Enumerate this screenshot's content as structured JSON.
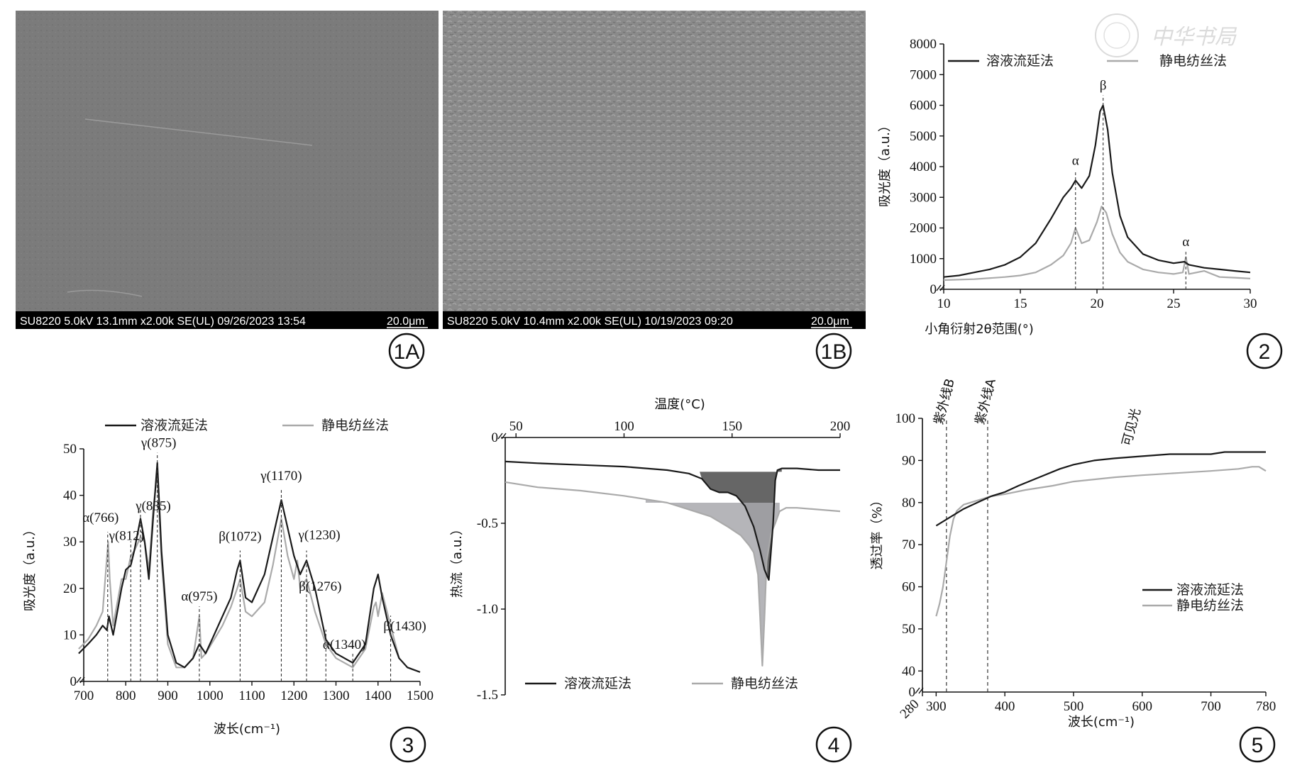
{
  "colors": {
    "dark": "#1a1a1a",
    "light": "#aaaaaa",
    "fill_dark": "#555555",
    "fill_light": "#a8a8ad",
    "sem_bg": "#8c8c8c"
  },
  "panels": {
    "p1a": {
      "label": "1A",
      "info": "SU8220 5.0kV 13.1mm x2.00k SE(UL) 09/26/2023 13:54",
      "scale": "20.0μm"
    },
    "p1b": {
      "label": "1B",
      "info": "SU8220 5.0kV 10.4mm x2.00k SE(UL) 10/19/2023 09:20",
      "scale": "20.0μm"
    },
    "p2": {
      "label": "2"
    },
    "p3": {
      "label": "3"
    },
    "p4": {
      "label": "4"
    },
    "p5": {
      "label": "5"
    }
  },
  "watermark": "中华书局",
  "chart_data": [
    {
      "id": "p2",
      "type": "line",
      "xlabel": "小角衍射2θ范围(°)",
      "ylabel": "吸光度（a.u.）",
      "xlim": [
        10,
        30
      ],
      "ylim": [
        0,
        8000
      ],
      "xticks": [
        10,
        15,
        20,
        25,
        30
      ],
      "yticks": [
        0,
        1000,
        2000,
        3000,
        4000,
        5000,
        6000,
        7000,
        8000
      ],
      "legend": [
        "溶液流延法",
        "静电纺丝法"
      ],
      "legend_position": "top",
      "series": [
        {
          "name": "溶液流延法",
          "x": [
            10,
            11,
            12,
            13,
            14,
            15,
            16,
            17,
            17.8,
            18.3,
            18.6,
            19,
            19.5,
            19.9,
            20.2,
            20.4,
            20.7,
            21,
            21.5,
            22,
            23,
            24,
            25,
            25.7,
            26,
            27,
            28,
            29,
            30
          ],
          "values": [
            400,
            450,
            550,
            650,
            800,
            1050,
            1500,
            2300,
            3000,
            3300,
            3550,
            3300,
            3700,
            4700,
            5800,
            6000,
            5200,
            3800,
            2400,
            1700,
            1150,
            950,
            850,
            900,
            800,
            700,
            650,
            600,
            550
          ]
        },
        {
          "name": "静电纺丝法",
          "x": [
            10,
            12,
            14,
            15,
            16,
            17,
            17.8,
            18.3,
            18.6,
            19,
            19.5,
            20,
            20.3,
            20.6,
            21,
            21.5,
            22,
            23,
            24,
            25,
            25.6,
            25.8,
            26,
            27,
            28,
            29,
            30
          ],
          "values": [
            300,
            330,
            400,
            450,
            550,
            800,
            1100,
            1500,
            2000,
            1500,
            1600,
            2200,
            2700,
            2500,
            1800,
            1200,
            900,
            650,
            550,
            500,
            550,
            1050,
            500,
            600,
            400,
            380,
            350
          ]
        }
      ],
      "annotations": [
        {
          "text": "α",
          "x": 18.6
        },
        {
          "text": "β",
          "x": 20.4
        },
        {
          "text": "α",
          "x": 25.8
        }
      ]
    },
    {
      "id": "p3",
      "type": "line",
      "xlabel": "波长(cm⁻¹)",
      "ylabel": "吸光度（a.u.）",
      "xlim": [
        700,
        1500
      ],
      "ylim": [
        0,
        50
      ],
      "xticks": [
        700,
        800,
        900,
        1000,
        1100,
        1200,
        1300,
        1400,
        1500
      ],
      "yticks": [
        0,
        10,
        20,
        30,
        40,
        50
      ],
      "legend": [
        "溶液流延法",
        "静电纺丝法"
      ],
      "legend_position": "top",
      "series": [
        {
          "name": "溶液流延法",
          "x": [
            688,
            710,
            730,
            745,
            755,
            760,
            770,
            790,
            800,
            812,
            820,
            835,
            845,
            855,
            865,
            875,
            885,
            900,
            920,
            940,
            960,
            975,
            990,
            1010,
            1030,
            1050,
            1065,
            1072,
            1085,
            1100,
            1130,
            1150,
            1170,
            1185,
            1200,
            1215,
            1230,
            1250,
            1276,
            1300,
            1340,
            1370,
            1390,
            1400,
            1410,
            1430,
            1450,
            1470,
            1500
          ],
          "values": [
            6,
            8,
            10,
            12,
            11,
            14,
            10,
            20,
            24,
            25,
            28,
            35,
            30,
            22,
            35,
            47,
            28,
            10,
            4,
            3,
            5,
            8,
            6,
            10,
            14,
            18,
            24,
            26,
            18,
            17,
            23,
            31,
            39,
            33,
            27,
            23,
            26,
            20,
            9,
            6,
            4,
            8,
            20,
            23,
            18,
            10,
            5,
            3,
            2
          ]
        },
        {
          "name": "静电纺丝法",
          "x": [
            688,
            710,
            730,
            745,
            758,
            762,
            770,
            790,
            800,
            812,
            820,
            835,
            845,
            855,
            865,
            875,
            885,
            900,
            920,
            940,
            960,
            975,
            980,
            990,
            1010,
            1030,
            1050,
            1065,
            1072,
            1085,
            1100,
            1130,
            1150,
            1170,
            1185,
            1200,
            1208,
            1215,
            1230,
            1250,
            1276,
            1300,
            1340,
            1370,
            1390,
            1395,
            1400,
            1410,
            1430,
            1450,
            1470,
            1500
          ],
          "values": [
            7,
            9,
            12,
            15,
            30,
            22,
            12,
            22,
            22,
            27,
            28,
            31,
            30,
            24,
            37,
            45,
            26,
            8,
            3,
            3,
            5,
            14,
            5,
            6,
            9,
            12,
            16,
            20,
            22,
            15,
            14,
            17,
            25,
            35,
            27,
            22,
            26,
            20,
            22,
            15,
            8,
            5,
            3,
            7,
            16,
            17,
            14,
            19,
            12,
            5,
            3,
            2
          ]
        }
      ],
      "annotations": [
        {
          "text": "α(766)",
          "x": 757
        },
        {
          "text": "γ(812)",
          "x": 812
        },
        {
          "text": "γ(835)",
          "x": 835
        },
        {
          "text": "γ(875)",
          "x": 875
        },
        {
          "text": "α(975)",
          "x": 975
        },
        {
          "text": "β(1072)",
          "x": 1072
        },
        {
          "text": "γ(1170)",
          "x": 1170
        },
        {
          "text": "γ(1230)",
          "x": 1230
        },
        {
          "text": "β(1276)",
          "x": 1276
        },
        {
          "text": "α(1340)",
          "x": 1340
        },
        {
          "text": "β(1430)",
          "x": 1430
        }
      ]
    },
    {
      "id": "p4",
      "type": "area",
      "xlabel": "温度(°C)",
      "ylabel": "热流（a.u.）",
      "xlim": [
        45,
        200
      ],
      "ylim": [
        -1.5,
        0
      ],
      "xticks": [
        50,
        100,
        150,
        200
      ],
      "yticks": [
        0,
        -0.5,
        -1.0,
        -1.5
      ],
      "ytick_labels": [
        "0",
        "-0.5",
        "-1.0",
        "-1.5"
      ],
      "legend": [
        "溶液流延法",
        "静电纺丝法"
      ],
      "legend_position": "bottom",
      "series": [
        {
          "name": "溶液流延法",
          "x": [
            45,
            60,
            80,
            100,
            120,
            130,
            136,
            140,
            144,
            148,
            152,
            156,
            160,
            163,
            165,
            167,
            169,
            170,
            171,
            173,
            176,
            180,
            190,
            200
          ],
          "values": [
            -0.14,
            -0.15,
            -0.16,
            -0.17,
            -0.19,
            -0.21,
            -0.24,
            -0.3,
            -0.32,
            -0.32,
            -0.34,
            -0.4,
            -0.52,
            -0.66,
            -0.77,
            -0.83,
            -0.5,
            -0.25,
            -0.19,
            -0.18,
            -0.18,
            -0.18,
            -0.19,
            -0.19
          ]
        },
        {
          "name": "静电纺丝法",
          "x": [
            45,
            60,
            80,
            100,
            110,
            120,
            130,
            140,
            148,
            154,
            158,
            160,
            162,
            163,
            164,
            165,
            166,
            168,
            170,
            172,
            175,
            180,
            190,
            200
          ],
          "values": [
            -0.26,
            -0.29,
            -0.31,
            -0.34,
            -0.36,
            -0.38,
            -0.42,
            -0.46,
            -0.52,
            -0.57,
            -0.63,
            -0.67,
            -0.8,
            -1.05,
            -1.33,
            -1.05,
            -0.72,
            -0.56,
            -0.5,
            -0.43,
            -0.41,
            -0.41,
            -0.42,
            -0.43
          ]
        }
      ]
    },
    {
      "id": "p5",
      "type": "line",
      "xlabel": "波长(cm⁻¹)",
      "ylabel": "透过率（%）",
      "xlim": [
        280,
        780
      ],
      "ylim": [
        35,
        100
      ],
      "xticks": [
        280,
        300,
        400,
        500,
        600,
        700,
        780
      ],
      "yticks": [
        40,
        50,
        60,
        70,
        80,
        90,
        100
      ],
      "legend": [
        "溶液流延法",
        "静电纺丝法"
      ],
      "legend_position": "bottom-right",
      "series": [
        {
          "name": "溶液流延法",
          "x": [
            300,
            320,
            340,
            360,
            380,
            400,
            420,
            450,
            480,
            500,
            530,
            560,
            600,
            640,
            660,
            700,
            720,
            740,
            760,
            780
          ],
          "values": [
            74.5,
            76.5,
            78.5,
            80,
            81.5,
            82.5,
            84,
            86,
            88,
            89,
            90,
            90.5,
            91,
            91.5,
            91.5,
            91.5,
            92,
            92,
            92,
            92
          ]
        },
        {
          "name": "静电纺丝法",
          "x": [
            300,
            305,
            310,
            315,
            320,
            325,
            330,
            340,
            360,
            380,
            400,
            430,
            470,
            500,
            560,
            600,
            650,
            700,
            740,
            760,
            770,
            780
          ],
          "values": [
            53,
            56,
            60,
            66,
            72,
            76,
            78,
            79.5,
            80.5,
            81.5,
            82,
            83,
            84,
            85,
            86,
            86.5,
            87,
            87.5,
            88,
            88.5,
            88.5,
            87.5
          ]
        }
      ],
      "vlines": [
        {
          "text": "紫外线B",
          "x": 315
        },
        {
          "text": "紫外线A",
          "x": 375
        }
      ],
      "region_label": "可见光"
    }
  ]
}
